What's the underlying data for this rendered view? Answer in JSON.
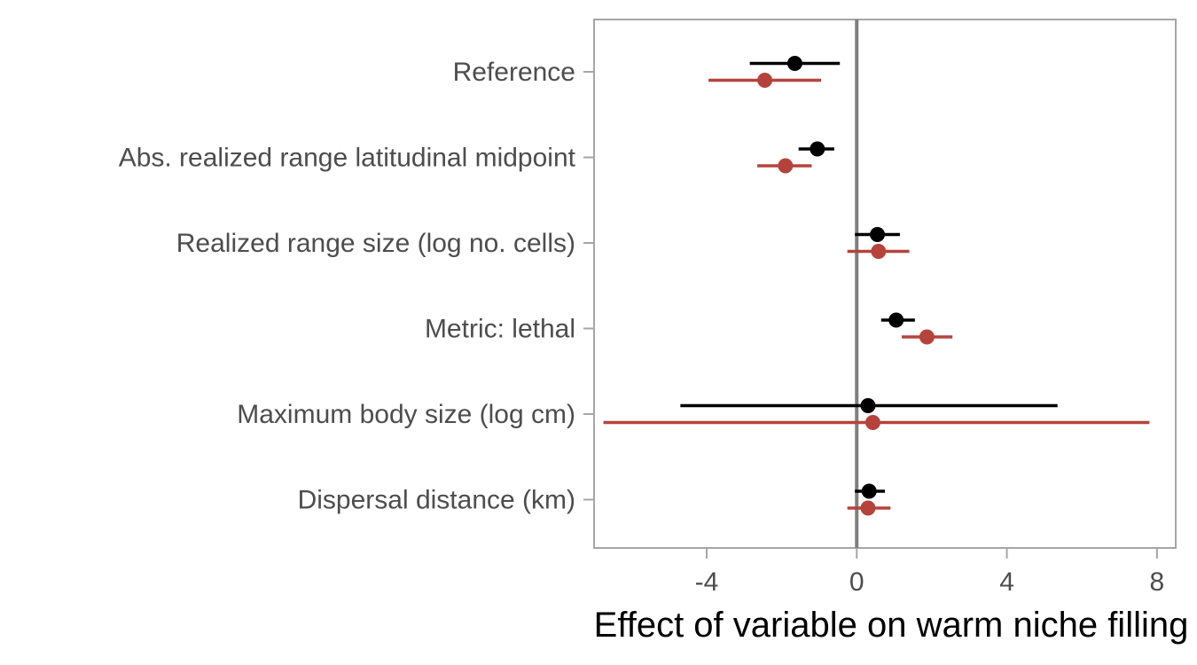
{
  "chart_data": {
    "type": "scatter",
    "subtype": "coefficient-plot",
    "title": "",
    "xlabel": "Effect of variable on warm niche filling",
    "ylabel": "",
    "xlim": [
      -7.0,
      8.5
    ],
    "xticks": [
      -4,
      0,
      4,
      8
    ],
    "xtick_labels": [
      "-4",
      "0",
      "4",
      "8"
    ],
    "reference_line_x": 0,
    "grid": false,
    "legend": "none",
    "categories": [
      "Reference",
      "Abs. realized range latitudinal midpoint",
      "Realized range size (log no. cells)",
      "Metric: lethal",
      "Maximum body size (log cm)",
      "Dispersal distance (km)"
    ],
    "series": [
      {
        "color": "#000000",
        "estimates": [
          -1.65,
          -1.05,
          0.55,
          1.05,
          0.3,
          0.33
        ],
        "lower": [
          -2.85,
          -1.55,
          -0.05,
          0.65,
          -4.7,
          -0.05
        ],
        "upper": [
          -0.45,
          -0.6,
          1.15,
          1.55,
          5.35,
          0.75
        ]
      },
      {
        "color": "#b5433c",
        "estimates": [
          -2.45,
          -1.9,
          0.58,
          1.87,
          0.43,
          0.3
        ],
        "lower": [
          -3.95,
          -2.65,
          -0.25,
          1.2,
          -6.75,
          -0.25
        ],
        "upper": [
          -0.95,
          -1.2,
          1.4,
          2.55,
          7.8,
          0.9
        ]
      }
    ],
    "colors": {
      "panel_border": "#a6a6a6",
      "zero_line": "#7f7f7f",
      "axis_text": "#4d4d4d"
    }
  }
}
